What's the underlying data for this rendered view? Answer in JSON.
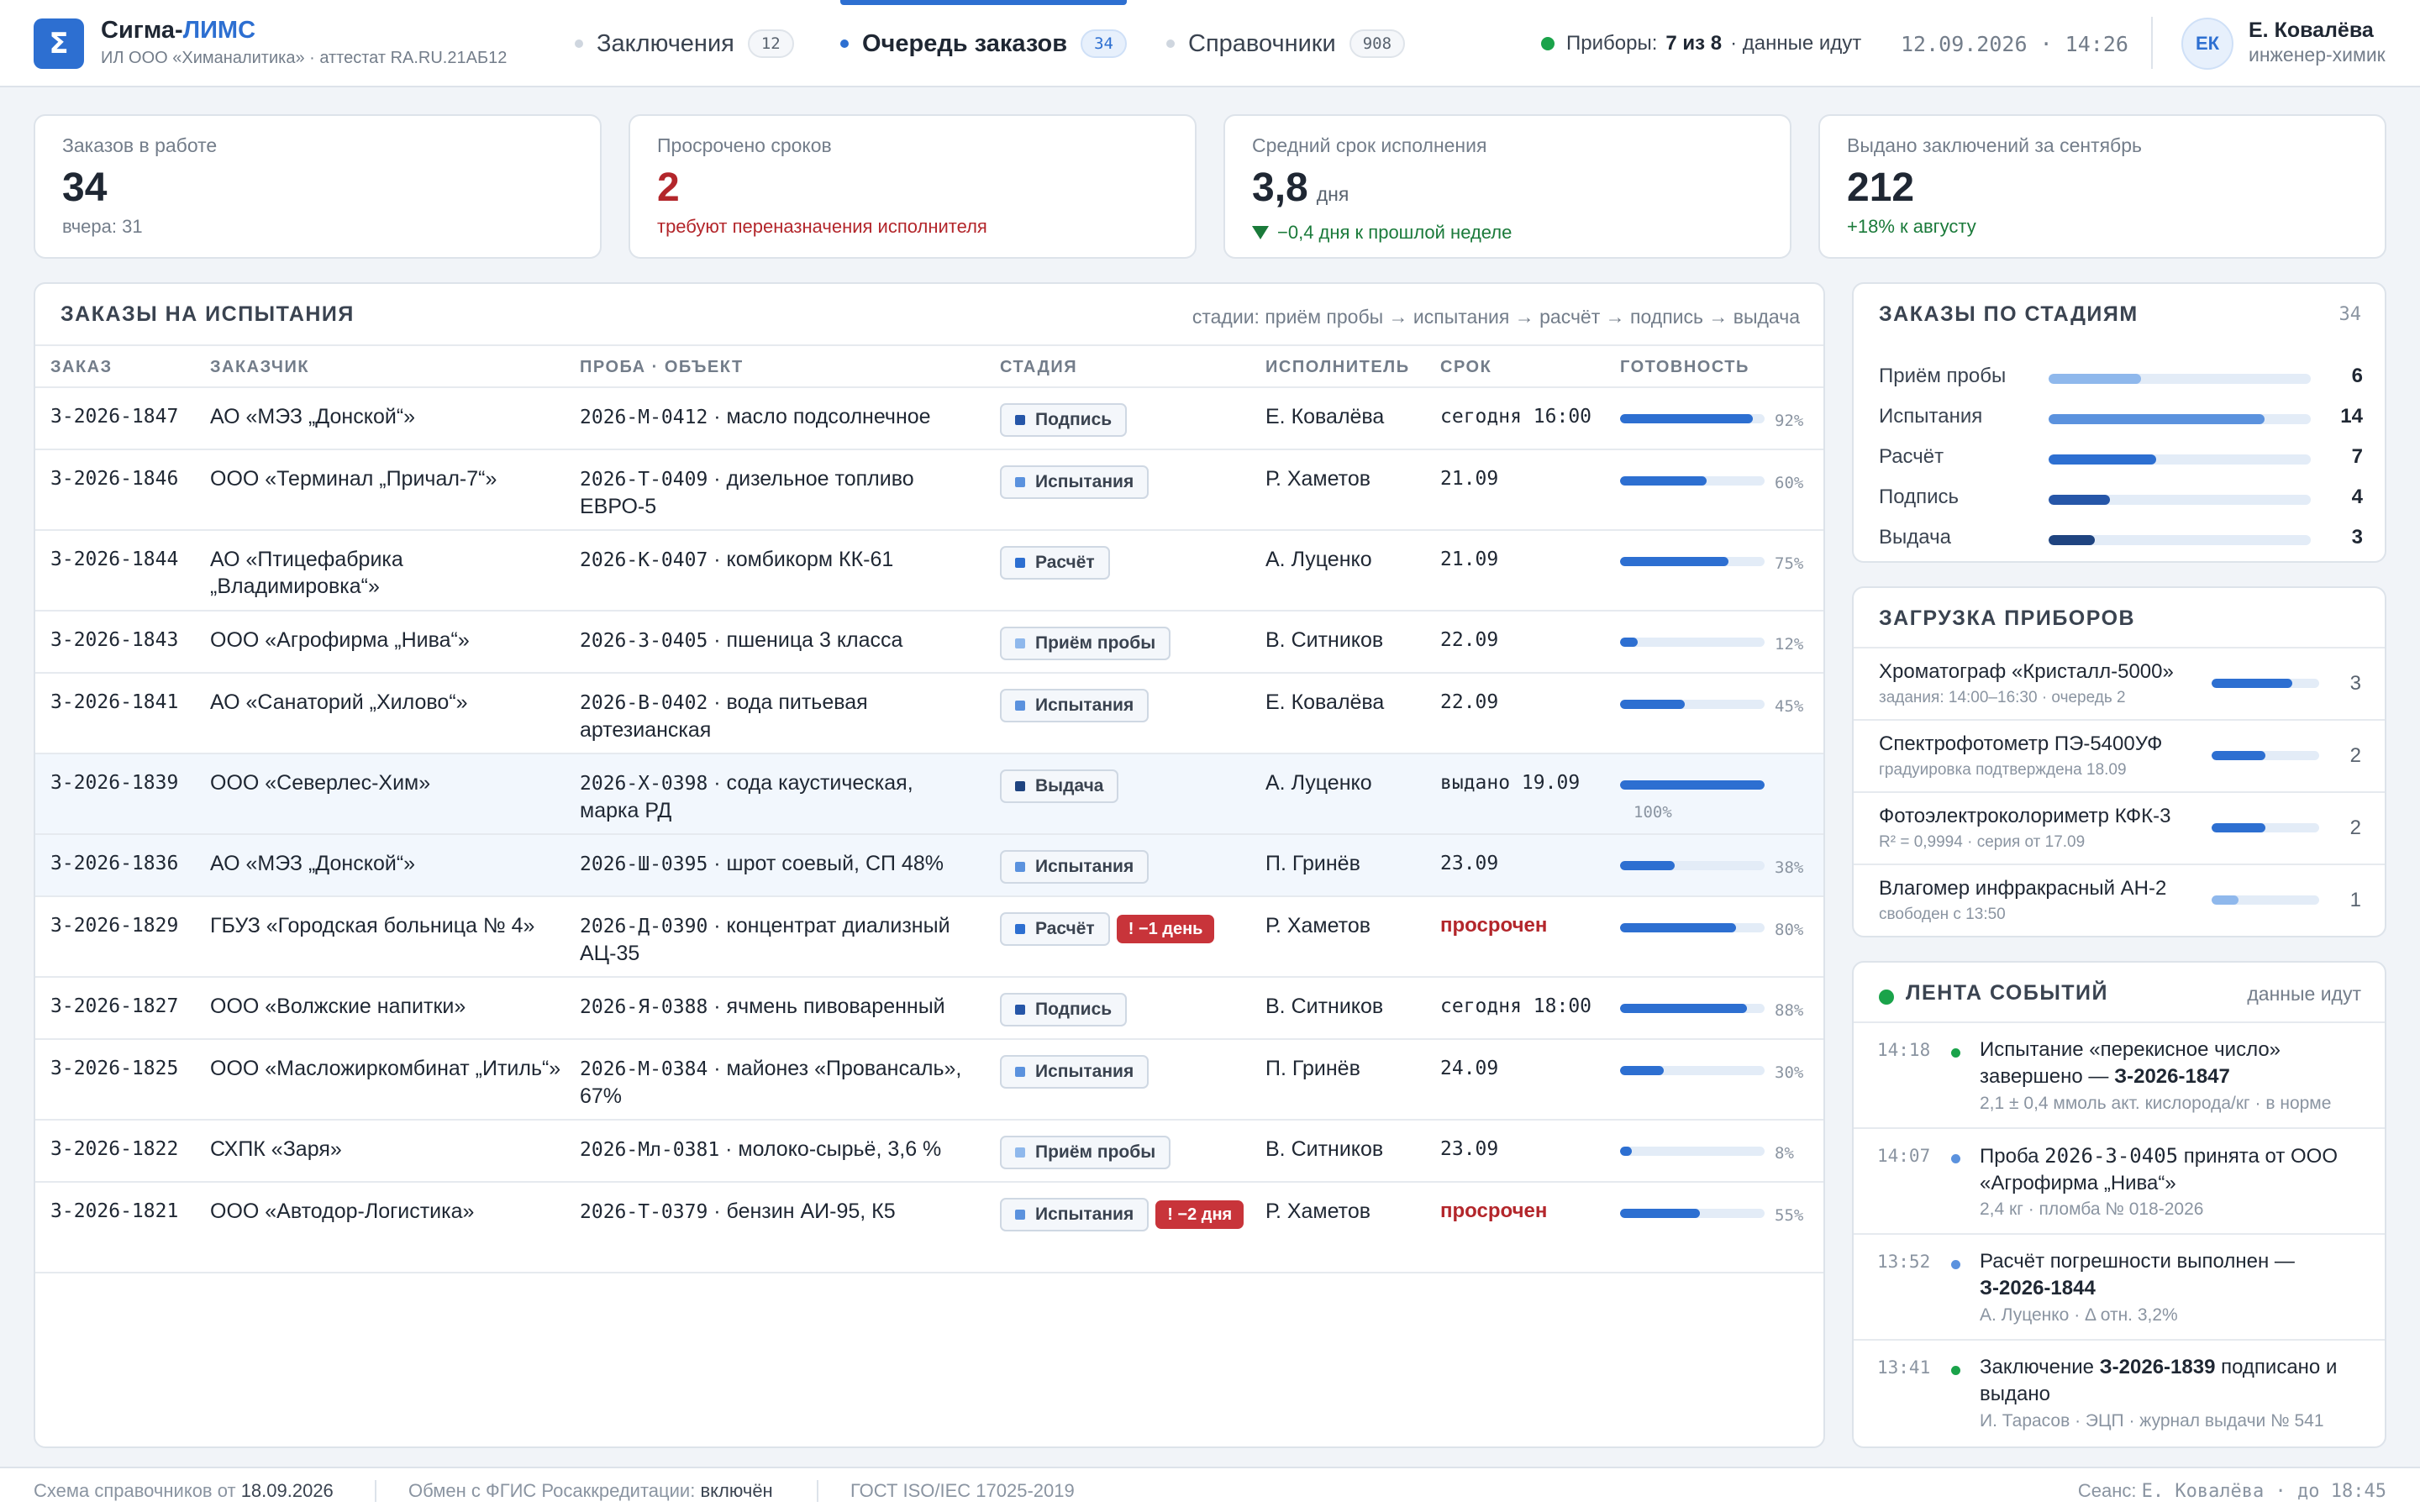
{
  "app": {
    "logo_glyph": "Σ",
    "name_part1": "Сигма-",
    "name_part2": "ЛИМС",
    "org": "ИЛ ООО «Химаналитика» · аттестат RA.RU.21АБ12",
    "accent": "#2d6fd1"
  },
  "nav": {
    "tabs": [
      {
        "label": "Заключения",
        "count": "12",
        "active": false
      },
      {
        "label": "Очередь заказов",
        "count": "34",
        "active": true
      },
      {
        "label": "Справочники",
        "count": "908",
        "active": false
      }
    ]
  },
  "devices": {
    "label": "Приборы:",
    "value": "7 из 8",
    "status": "· данные идут",
    "status_color": "#1aa34a"
  },
  "datetime": "12.09.2026 · 14:26",
  "user": {
    "initials": "ЕК",
    "name": "Е. Ковалёва",
    "role": "инженер-химик"
  },
  "kpis": [
    {
      "label": "Заказов в работе",
      "value": "34",
      "unit": "",
      "note": "вчера: 31",
      "tone": "neutral"
    },
    {
      "label": "Просрочено сроков",
      "value": "2",
      "unit": "",
      "note": "требуют переназначения исполнителя",
      "tone": "red"
    },
    {
      "label": "Средний срок исполнения",
      "value": "3,8",
      "unit": "дня",
      "note": "−0,4 дня к прошлой неделе",
      "tone": "green"
    },
    {
      "label": "Выдано заключений за сентябрь",
      "value": "212",
      "unit": "",
      "note": "+18% к августу",
      "tone": "green"
    }
  ],
  "orders": {
    "title": "ЗАКАЗЫ НА ИСПЫТАНИЯ",
    "stages_hint": "стадии: приём пробы → испытания → расчёт → подпись → выдача",
    "columns": {
      "id": "ЗАКАЗ",
      "customer": "ЗАКАЗЧИК",
      "probe": "ПРОБА · ОБЪЕКТ",
      "stage": "СТАДИЯ",
      "executor": "ИСПОЛНИТЕЛЬ",
      "due": "СРОК",
      "progress": "ГОТОВНОСТЬ"
    },
    "rows": [
      {
        "id": "З-2026-1847",
        "customer": "АО «МЭЗ „Донской“»",
        "probe_code": "2026-М-0412",
        "probe_desc": " · масло подсолнечное",
        "stage": "Подпись",
        "stage_color": "#2656a8",
        "late": "",
        "executor": "Е. Ковалёва",
        "due": "сегодня 16:00",
        "overdue": false,
        "progress": 92,
        "progress_label": "92%"
      },
      {
        "id": "З-2026-1846",
        "customer": "ООО «Терминал „Причал-7“»",
        "probe_code": "2026-Т-0409",
        "probe_desc": " · дизельное топливо ЕВРО-5",
        "stage": "Испытания",
        "stage_color": "#5b92de",
        "late": "",
        "executor": "Р. Хаметов",
        "due": "21.09",
        "overdue": false,
        "progress": 60,
        "progress_label": "60%"
      },
      {
        "id": "З-2026-1844",
        "customer": "АО «Птицефабрика „Владимировка“»",
        "probe_code": "2026-К-0407",
        "probe_desc": " · комбикорм КК-61",
        "stage": "Расчёт",
        "stage_color": "#2d6fd1",
        "late": "",
        "executor": "А. Луценко",
        "due": "21.09",
        "overdue": false,
        "progress": 75,
        "progress_label": "75%"
      },
      {
        "id": "З-2026-1843",
        "customer": "ООО «Агрофирма „Нива“»",
        "probe_code": "2026-З-0405",
        "probe_desc": " · пшеница 3 класса",
        "stage": "Приём пробы",
        "stage_color": "#8fb8ec",
        "late": "",
        "executor": "В. Ситников",
        "due": "22.09",
        "overdue": false,
        "progress": 12,
        "progress_label": "12%"
      },
      {
        "id": "З-2026-1841",
        "customer": "АО «Санаторий „Хилово“»",
        "probe_code": "2026-В-0402",
        "probe_desc": " · вода питьевая артезианская",
        "stage": "Испытания",
        "stage_color": "#5b92de",
        "late": "",
        "executor": "Е. Ковалёва",
        "due": "22.09",
        "overdue": false,
        "progress": 45,
        "progress_label": "45%"
      },
      {
        "id": "З-2026-1839",
        "customer": "ООО «Северлес-Хим»",
        "probe_code": "2026-Х-0398",
        "probe_desc": " · сода каустическая, марка РД",
        "stage": "Выдача",
        "stage_color": "#1f4480",
        "late": "",
        "executor": "А. Луценко",
        "due": "выдано 19.09",
        "overdue": false,
        "progress": 100,
        "progress_label": "100%"
      },
      {
        "id": "З-2026-1836",
        "customer": "АО «МЭЗ „Донской“»",
        "probe_code": "2026-Ш-0395",
        "probe_desc": " · шрот соевый, СП 48%",
        "stage": "Испытания",
        "stage_color": "#5b92de",
        "late": "",
        "executor": "П. Гринёв",
        "due": "23.09",
        "overdue": false,
        "progress": 38,
        "progress_label": "38%"
      },
      {
        "id": "З-2026-1829",
        "customer": "ГБУЗ «Городская больница № 4»",
        "probe_code": "2026-Д-0390",
        "probe_desc": " · концентрат диализный АЦ-35",
        "stage": "Расчёт",
        "stage_color": "#2d6fd1",
        "late": "! −1 день",
        "executor": "Р. Хаметов",
        "due": "просрочен",
        "overdue": true,
        "progress": 80,
        "progress_label": "80%"
      },
      {
        "id": "З-2026-1827",
        "customer": "ООО «Волжские напитки»",
        "probe_code": "2026-Я-0388",
        "probe_desc": " · ячмень пивоваренный",
        "stage": "Подпись",
        "stage_color": "#2656a8",
        "late": "",
        "executor": "В. Ситников",
        "due": "сегодня 18:00",
        "overdue": false,
        "progress": 88,
        "progress_label": "88%"
      },
      {
        "id": "З-2026-1825",
        "customer": "ООО «Масложиркомбинат „Итиль“»",
        "probe_code": "2026-М-0384",
        "probe_desc": " · майонез «Провансаль», 67%",
        "stage": "Испытания",
        "stage_color": "#5b92de",
        "late": "",
        "executor": "П. Гринёв",
        "due": "24.09",
        "overdue": false,
        "progress": 30,
        "progress_label": "30%"
      },
      {
        "id": "З-2026-1822",
        "customer": "СХПК «Заря»",
        "probe_code": "2026-Мл-0381",
        "probe_desc": " · молоко-сырьё, 3,6 %",
        "stage": "Приём пробы",
        "stage_color": "#8fb8ec",
        "late": "",
        "executor": "В. Ситников",
        "due": "23.09",
        "overdue": false,
        "progress": 8,
        "progress_label": "8%"
      },
      {
        "id": "З-2026-1821",
        "customer": "ООО «Автодор-Логистика»",
        "probe_code": "2026-Т-0379",
        "probe_desc": " · бензин АИ-95, К5",
        "stage": "Испытания",
        "stage_color": "#5b92de",
        "late": "! −2 дня",
        "executor": "Р. Хаметов",
        "due": "просрочен",
        "overdue": true,
        "progress": 55,
        "progress_label": "55%"
      }
    ]
  },
  "by_stage": {
    "title": "ЗАКАЗЫ ПО СТАДИЯМ",
    "total": "34",
    "items": [
      {
        "name": "Приём пробы",
        "value": 6,
        "color": "#8fb8ec"
      },
      {
        "name": "Испытания",
        "value": 14,
        "color": "#5b92de"
      },
      {
        "name": "Расчёт",
        "value": 7,
        "color": "#2d6fd1"
      },
      {
        "name": "Подпись",
        "value": 4,
        "color": "#2656a8"
      },
      {
        "name": "Выдача",
        "value": 3,
        "color": "#1f4480"
      }
    ]
  },
  "load": {
    "title": "ЗАГРУЗКА ПРИБОРОВ",
    "items": [
      {
        "name": "Хроматограф «Кристалл-5000»",
        "sub": "задания: 14:00–16:30 · очередь 2",
        "value": "3",
        "fill": 0.75,
        "color": "#2d6fd1"
      },
      {
        "name": "Спектрофотометр ПЭ-5400УФ",
        "sub": "градуировка подтверждена 18.09",
        "value": "2",
        "fill": 0.5,
        "color": "#2d6fd1"
      },
      {
        "name": "Фотоэлектроколориметр КФК-3",
        "sub": "R² = 0,9994 · серия от 17.09",
        "value": "2",
        "fill": 0.5,
        "color": "#2d6fd1"
      },
      {
        "name": "Влагомер инфракрасный АН-2",
        "sub": "свободен с 13:50",
        "value": "1",
        "fill": 0.25,
        "color": "#8fb8ec"
      }
    ]
  },
  "feed": {
    "title": "ЛЕНТА СОБЫТИЙ",
    "status": "данные идут",
    "events": [
      {
        "time": "14:18",
        "dot": "#1aa34a",
        "text_a": "Испытание «перекисное число» завершено — ",
        "text_b": "З-2026-1847",
        "text_c": "",
        "sub": "2,1 ± 0,4 ммоль акт. кислорода/кг · в норме"
      },
      {
        "time": "14:07",
        "dot": "#5b92de",
        "text_a": "Проба ",
        "text_b": "",
        "text_mono": "2026-З-0405",
        "text_c": " принята от ООО «Агрофирма „Нива“»",
        "sub": "2,4 кг · пломба № 018-2026"
      },
      {
        "time": "13:52",
        "dot": "#5b92de",
        "text_a": "Расчёт погрешности выполнен — ",
        "text_b": "З-2026-1844",
        "text_c": "",
        "sub": "А. Луценко · Δ отн. 3,2%"
      },
      {
        "time": "13:41",
        "dot": "#1aa34a",
        "text_a": "Заключение ",
        "text_b": "З-2026-1839",
        "text_c": " подписано и выдано",
        "sub": "И. Тарасов · ЭЦП · журнал выдачи № 541"
      }
    ]
  },
  "footer": {
    "schema_label": "Схема справочников от ",
    "schema_date": "18.09.2026",
    "fgis_label": "Обмен с ФГИС Росаккредитации: ",
    "fgis_value": "включён",
    "standard": "ГОСТ ISO/IEC 17025-2019",
    "session_label": "Сеанс: ",
    "session_user": "Е. Ковалёва",
    "session_until": " · до 18:45"
  }
}
